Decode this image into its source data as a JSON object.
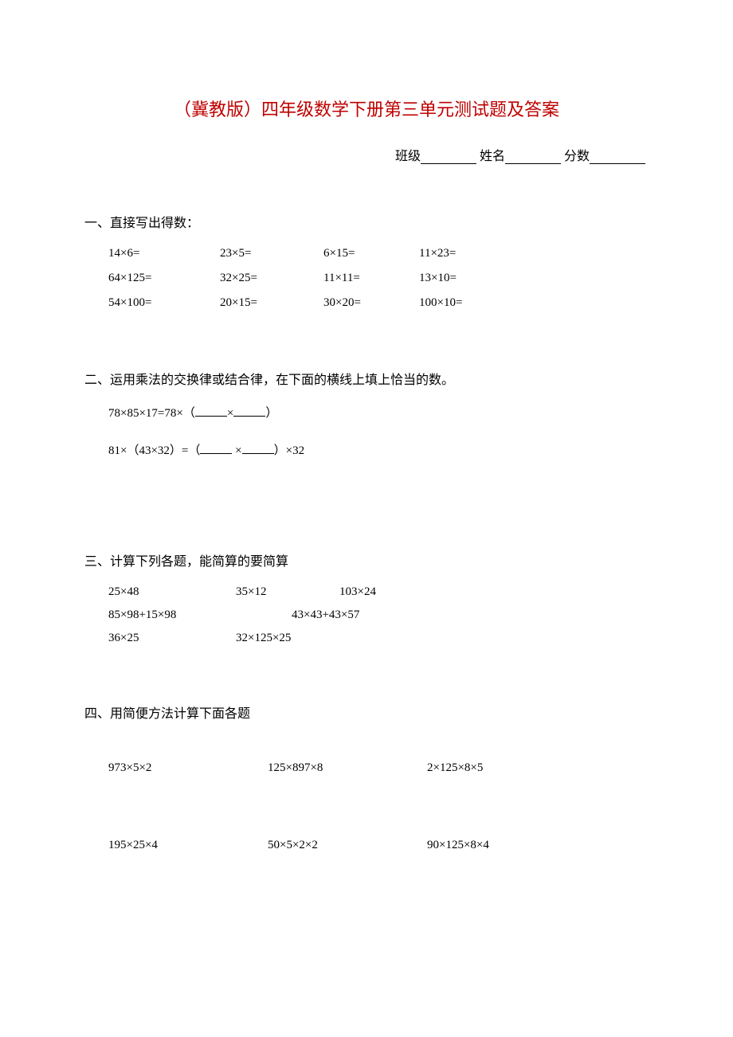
{
  "title": "（冀教版）四年级数学下册第三单元测试题及答案",
  "header": {
    "class_label": "班级",
    "name_label": "姓名",
    "score_label": "分数"
  },
  "section1": {
    "heading": "一、直接写出得数：",
    "rows": [
      [
        "14×6=",
        "23×5=",
        "6×15=",
        "11×23="
      ],
      [
        "64×125=",
        "32×25=",
        "11×11=",
        "13×10="
      ],
      [
        "54×100=",
        "20×15=",
        "30×20=",
        "100×10="
      ]
    ]
  },
  "section2": {
    "heading": "二、运用乘法的交换律或结合律，在下面的横线上填上恰当的数。",
    "line1_a": "78×85×17=78×（",
    "line1_b": "×",
    "line1_c": "）",
    "line2_a": "81×（43×32）=（",
    "line2_b": " ×",
    "line2_c": "）×32"
  },
  "section3": {
    "heading": "三、计算下列各题，能简算的要简算",
    "rows": [
      [
        "25×48",
        "35×12",
        "103×24"
      ],
      [
        "85×98+15×98",
        "43×43+43×57"
      ],
      [
        "36×25",
        "32×125×25"
      ]
    ]
  },
  "section4": {
    "heading": "四、用简便方法计算下面各题",
    "rows": [
      [
        "973×5×2",
        "125×897×8",
        "2×125×8×5"
      ],
      [
        "195×25×4",
        "50×5×2×2",
        "90×125×8×4"
      ]
    ]
  },
  "colors": {
    "title_color": "#bf0000",
    "text_color": "#000000",
    "background": "#ffffff"
  }
}
